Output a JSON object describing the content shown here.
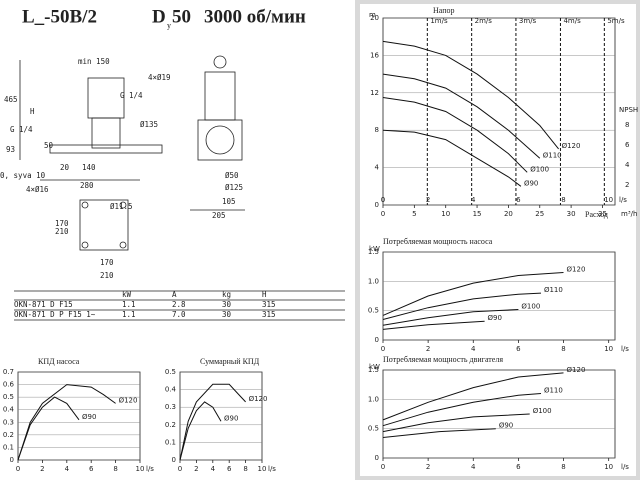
{
  "header": {
    "title": "L_-50B/2",
    "dn": "D",
    "dn_sub": "y",
    "dn_value": "50",
    "speed": "3000 об/мин"
  },
  "drawing": {
    "labels": [
      "min 150",
      "465",
      "H",
      "93",
      "G 1/4",
      "G 1/4",
      "4×Ø19",
      "Ø135",
      "50",
      "0, syva 10",
      "20",
      "140",
      "280",
      "4×Ø16",
      "Ø11.5",
      "Ø50",
      "Ø125",
      "105",
      "205",
      "170",
      "210",
      "170",
      "210"
    ]
  },
  "table": {
    "header": [
      "kW",
      "A",
      "kg",
      "H"
    ],
    "rows": [
      [
        "OKN-871 D F15",
        "1.1",
        "2.8",
        "30",
        "315"
      ],
      [
        "OKN-871 D P F15 1~",
        "1.1",
        "7.0",
        "30",
        "315"
      ]
    ]
  },
  "charts": [
    {
      "title": "Напор",
      "xlabel": "Расход",
      "xunit": "m³/h",
      "yunit": "m",
      "xlim": [
        0,
        37
      ],
      "ylim": [
        0,
        20
      ],
      "xticks": [
        0,
        5,
        10,
        15,
        20,
        25,
        30,
        35
      ],
      "yticks": [
        0,
        4,
        8,
        12,
        16,
        20
      ],
      "x2unit": "l/s",
      "x2lim": [
        0,
        10.28
      ],
      "x2ticks": [
        0,
        2,
        4,
        6,
        8,
        10
      ],
      "y2label": "NPSH m",
      "y2lim": [
        0,
        18.7
      ],
      "y2ticks": [
        2,
        4,
        6,
        8
      ],
      "velocity_lines": [
        {
          "x": 7.07,
          "label": "1m/s"
        },
        {
          "x": 14.14,
          "label": "2m/s"
        },
        {
          "x": 21.2,
          "label": "3m/s"
        },
        {
          "x": 28.3,
          "label": "4m/s"
        },
        {
          "x": 35.3,
          "label": "5m/s"
        }
      ],
      "series": [
        {
          "name": "Ø120",
          "x": [
            0,
            5,
            10,
            15,
            20,
            25,
            28
          ],
          "values": [
            17.5,
            17,
            16,
            14,
            11.5,
            8.5,
            6
          ]
        },
        {
          "name": "Ø110",
          "x": [
            0,
            5,
            10,
            15,
            20,
            25
          ],
          "values": [
            14,
            13.5,
            12.5,
            10.5,
            8,
            5
          ]
        },
        {
          "name": "Ø100",
          "x": [
            0,
            5,
            10,
            15,
            20,
            23
          ],
          "values": [
            11.5,
            11,
            10,
            8,
            5.5,
            3.5
          ]
        },
        {
          "name": "Ø90",
          "x": [
            0,
            5,
            10,
            15,
            20,
            22
          ],
          "values": [
            8,
            7.8,
            7,
            5,
            3,
            2
          ]
        }
      ]
    },
    {
      "title": "Потребляемая мощность насоса",
      "xunit": "l/s",
      "yunit": "kW",
      "xlim": [
        0,
        10.28
      ],
      "ylim": [
        0,
        1.5
      ],
      "xticks": [
        0,
        2,
        4,
        6,
        8,
        10
      ],
      "yticks": [
        0,
        0.5,
        {
          "value": 1,
          "label": "1.0"
        },
        1.5
      ],
      "series": [
        {
          "name": "Ø120",
          "x": [
            0,
            2,
            4,
            6,
            8
          ],
          "values": [
            0.42,
            0.75,
            0.97,
            1.1,
            1.15
          ]
        },
        {
          "name": "Ø110",
          "x": [
            0,
            2,
            4,
            6,
            7
          ],
          "values": [
            0.35,
            0.55,
            0.7,
            0.78,
            0.8
          ]
        },
        {
          "name": "Ø100",
          "x": [
            0,
            2,
            4,
            6
          ],
          "values": [
            0.25,
            0.38,
            0.48,
            0.52
          ]
        },
        {
          "name": "Ø90",
          "x": [
            0,
            2,
            4.5
          ],
          "values": [
            0.18,
            0.26,
            0.32
          ]
        }
      ]
    },
    {
      "title": "Потребляемая мощность двигателя",
      "xunit": "l/s",
      "yunit": "kW",
      "xlim": [
        0,
        10.28
      ],
      "ylim": [
        0,
        1.5
      ],
      "xticks": [
        0,
        2,
        4,
        6,
        8,
        10
      ],
      "yticks": [
        0,
        0.5,
        {
          "value": 1,
          "label": "1.0"
        },
        1.5
      ],
      "series": [
        {
          "name": "Ø120",
          "x": [
            0,
            2,
            4,
            6,
            8
          ],
          "values": [
            0.65,
            0.95,
            1.2,
            1.38,
            1.45
          ]
        },
        {
          "name": "Ø110",
          "x": [
            0,
            2,
            4,
            6,
            7
          ],
          "values": [
            0.55,
            0.78,
            0.95,
            1.07,
            1.1
          ]
        },
        {
          "name": "Ø100",
          "x": [
            0,
            2,
            4,
            6.5
          ],
          "values": [
            0.45,
            0.6,
            0.7,
            0.75
          ]
        },
        {
          "name": "Ø90",
          "x": [
            0,
            2.5,
            5
          ],
          "values": [
            0.35,
            0.45,
            0.5
          ]
        }
      ]
    },
    {
      "title": "КПД насоса",
      "xunit": "l/s",
      "xlim": [
        0,
        10
      ],
      "ylim": [
        0,
        0.7
      ],
      "xticks": [
        0,
        2,
        4,
        6,
        8,
        10
      ],
      "yticks": [
        0,
        0.1,
        0.2,
        0.3,
        0.4,
        0.5,
        0.6,
        0.7
      ],
      "series": [
        {
          "name": "Ø120",
          "x": [
            0,
            1,
            2,
            4,
            6,
            7,
            8
          ],
          "values": [
            0,
            0.3,
            0.45,
            0.6,
            0.58,
            0.52,
            0.45
          ]
        },
        {
          "name": "Ø90",
          "x": [
            0,
            1,
            2,
            3,
            4,
            5
          ],
          "values": [
            0,
            0.28,
            0.42,
            0.5,
            0.45,
            0.32
          ]
        }
      ]
    },
    {
      "title": "Суммарный КПД",
      "xunit": "l/s",
      "xlim": [
        0,
        10
      ],
      "ylim": [
        0,
        0.5
      ],
      "xticks": [
        0,
        2,
        4,
        6,
        8,
        10
      ],
      "yticks": [
        0,
        0.1,
        0.2,
        0.3,
        0.4,
        0.5
      ],
      "series": [
        {
          "name": "Ø120",
          "x": [
            0,
            1,
            2,
            4,
            6,
            7,
            8
          ],
          "values": [
            0,
            0.22,
            0.33,
            0.43,
            0.43,
            0.38,
            0.33
          ]
        },
        {
          "name": "Ø90",
          "x": [
            0,
            1,
            2,
            3,
            4,
            5
          ],
          "values": [
            0,
            0.18,
            0.28,
            0.33,
            0.3,
            0.22
          ]
        }
      ]
    }
  ]
}
